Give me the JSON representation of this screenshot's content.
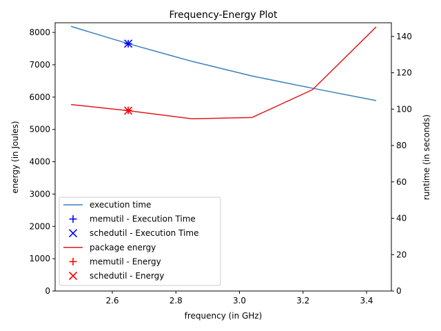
{
  "chart_data": {
    "type": "line",
    "title": "Frequency-Energy Plot",
    "xlabel": "frequency (in GHz)",
    "ylabel_left": "energy (in Joules)",
    "ylabel_right": "runtime (in seconds)",
    "xlim": [
      2.42,
      3.478
    ],
    "ylim_left": [
      0,
      8300
    ],
    "ylim_right": [
      0,
      147.5
    ],
    "x_ticks": [
      2.6,
      2.8,
      3.0,
      3.2,
      3.4
    ],
    "x_tick_labels": [
      "2.6",
      "2.8",
      "3.0",
      "3.2",
      "3.4"
    ],
    "y_left_ticks": [
      0,
      1000,
      2000,
      3000,
      4000,
      5000,
      6000,
      7000,
      8000
    ],
    "y_left_tick_labels": [
      "0",
      "1000",
      "2000",
      "3000",
      "4000",
      "5000",
      "6000",
      "7000",
      "8000"
    ],
    "y_right_ticks": [
      0,
      20,
      40,
      60,
      80,
      100,
      120,
      140
    ],
    "y_right_tick_labels": [
      "0",
      "20",
      "40",
      "60",
      "80",
      "100",
      "120",
      "140"
    ],
    "grid": false,
    "legend_position": "lower-left",
    "series": [
      {
        "name": "execution time",
        "kind": "line",
        "axis": "right",
        "color": "#3a7fc0",
        "x": [
          2.47,
          2.65,
          2.85,
          3.04,
          3.23,
          3.43
        ],
        "y": [
          145.5,
          136.0,
          126.3,
          118.2,
          111.5,
          104.7
        ]
      },
      {
        "name": "memutil - Execution Time",
        "kind": "marker",
        "marker": "plus",
        "axis": "right",
        "color": "#0000ff",
        "x": [
          2.65
        ],
        "y": [
          136.0
        ]
      },
      {
        "name": "schedutil - Execution Time",
        "kind": "marker",
        "marker": "x",
        "axis": "right",
        "color": "#0000ff",
        "x": [
          2.65
        ],
        "y": [
          136.0
        ]
      },
      {
        "name": "package energy",
        "kind": "line",
        "axis": "left",
        "color": "#e0191b",
        "x": [
          2.47,
          2.65,
          2.85,
          3.04,
          3.23,
          3.43
        ],
        "y": [
          5770,
          5580,
          5330,
          5370,
          6230,
          8170
        ]
      },
      {
        "name": "memutil - Energy",
        "kind": "marker",
        "marker": "plus",
        "axis": "left",
        "color": "#ff0000",
        "x": [
          2.65
        ],
        "y": [
          5590
        ]
      },
      {
        "name": "schedutil - Energy",
        "kind": "marker",
        "marker": "x",
        "axis": "left",
        "color": "#ff0000",
        "x": [
          2.65
        ],
        "y": [
          5580
        ]
      }
    ]
  }
}
